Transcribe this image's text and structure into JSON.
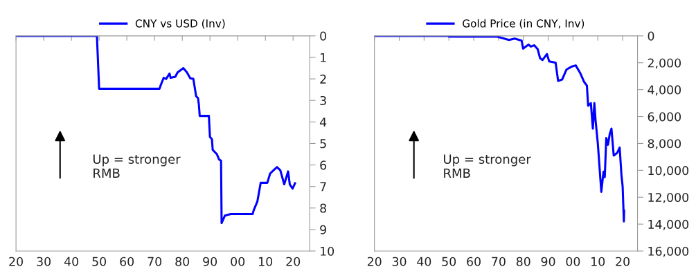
{
  "chart_data": [
    {
      "type": "line",
      "x": [
        1920,
        1949.2,
        1950,
        1971.8,
        1972.2,
        1973.3,
        1974.2,
        1975.4,
        1975.8,
        1977.5,
        1978.3,
        1980.4,
        1981.7,
        1982.9,
        1984,
        1985,
        1985.7,
        1986,
        1986.3,
        1989.6,
        1990,
        1990.7,
        1991,
        1992.5,
        1993.3,
        1994,
        1994.2,
        1995.4,
        1997.5,
        2005.4,
        2005.8,
        2007.1,
        2008.3,
        2010.7,
        2011.7,
        2012.5,
        2014.2,
        2015.4,
        2016.8,
        2018.2,
        2018.8,
        2019.8,
        2020.7
      ],
      "series": [
        {
          "name": "CNY vs USD (Inv)",
          "color": "#0000ff",
          "values": [
            0,
            0,
            2.46,
            2.46,
            2.3,
            1.95,
            2.0,
            1.75,
            1.95,
            1.9,
            1.7,
            1.5,
            1.7,
            1.97,
            2.0,
            2.8,
            2.9,
            3.2,
            3.72,
            3.72,
            4.7,
            4.8,
            5.3,
            5.5,
            5.75,
            5.8,
            8.7,
            8.35,
            8.28,
            8.28,
            8.1,
            7.7,
            6.83,
            6.83,
            6.4,
            6.3,
            6.1,
            6.25,
            6.9,
            6.3,
            6.9,
            7.1,
            6.85
          ]
        }
      ],
      "xlim": [
        1920,
        2026
      ],
      "xticks": [
        {
          "value": 1920,
          "label": "20"
        },
        {
          "value": 1930,
          "label": "30"
        },
        {
          "value": 1940,
          "label": "40"
        },
        {
          "value": 1950,
          "label": "50"
        },
        {
          "value": 1960,
          "label": "60"
        },
        {
          "value": 1970,
          "label": "70"
        },
        {
          "value": 1980,
          "label": "80"
        },
        {
          "value": 1990,
          "label": "90"
        },
        {
          "value": 2000,
          "label": "00"
        },
        {
          "value": 2010,
          "label": "10"
        },
        {
          "value": 2020,
          "label": "20"
        }
      ],
      "ylim": [
        10,
        0
      ],
      "yticks": [
        0,
        1,
        2,
        3,
        4,
        5,
        6,
        7,
        8,
        9,
        10
      ],
      "legend": "top",
      "grid": false,
      "annotations": [
        "Up = stronger\nRMB"
      ]
    },
    {
      "type": "line",
      "x": [
        1920,
        1949.8,
        1950,
        1969.5,
        1974.2,
        1976.5,
        1979.3,
        1979.9,
        1982.1,
        1983,
        1984.4,
        1985.8,
        1986.7,
        1987.7,
        1989.5,
        1990.4,
        1991.8,
        1993,
        1994,
        1995.6,
        1997.4,
        1999.3,
        2001.1,
        2003,
        2004.4,
        2005.6,
        2006.1,
        2007.2,
        2008,
        2008.6,
        2009.1,
        2010,
        2011.4,
        2012.3,
        2012.8,
        2013.4,
        2014.1,
        2014.8,
        2015.5,
        2016.4,
        2017.8,
        2018.8,
        2019.5,
        2020,
        2020.5,
        2020.6
      ],
      "series": [
        {
          "name": "Gold Price (in CNY, Inv)",
          "color": "#0000ff",
          "values": [
            0,
            0,
            60,
            60,
            300,
            200,
            350,
            950,
            650,
            800,
            700,
            1000,
            1650,
            1800,
            1350,
            1900,
            1950,
            2000,
            3350,
            3250,
            2500,
            2300,
            2200,
            2800,
            3400,
            3700,
            5200,
            5000,
            6900,
            5000,
            6300,
            8000,
            11600,
            10100,
            10500,
            7600,
            8100,
            7300,
            6900,
            8900,
            8700,
            8300,
            10300,
            11200,
            13800,
            13000
          ]
        }
      ],
      "xlim": [
        1920,
        2026
      ],
      "xticks": [
        {
          "value": 1920,
          "label": "20"
        },
        {
          "value": 1930,
          "label": "30"
        },
        {
          "value": 1940,
          "label": "40"
        },
        {
          "value": 1950,
          "label": "50"
        },
        {
          "value": 1960,
          "label": "60"
        },
        {
          "value": 1970,
          "label": "70"
        },
        {
          "value": 1980,
          "label": "80"
        },
        {
          "value": 1990,
          "label": "90"
        },
        {
          "value": 2000,
          "label": "00"
        },
        {
          "value": 2010,
          "label": "10"
        },
        {
          "value": 2020,
          "label": "20"
        }
      ],
      "ylim": [
        16000,
        0
      ],
      "yticks": [
        0,
        {
          "value": 2000,
          "label": "2,000"
        },
        {
          "value": 4000,
          "label": "4,000"
        },
        {
          "value": 6000,
          "label": "6,000"
        },
        {
          "value": 8000,
          "label": "8,000"
        },
        {
          "value": 10000,
          "label": "10,000"
        },
        {
          "value": 12000,
          "label": "12,000"
        },
        {
          "value": 14000,
          "label": "14,000"
        },
        {
          "value": 16000,
          "label": "16,000"
        }
      ],
      "legend": "top",
      "grid": false,
      "annotations": [
        "Up = stronger\nRMB"
      ]
    }
  ]
}
